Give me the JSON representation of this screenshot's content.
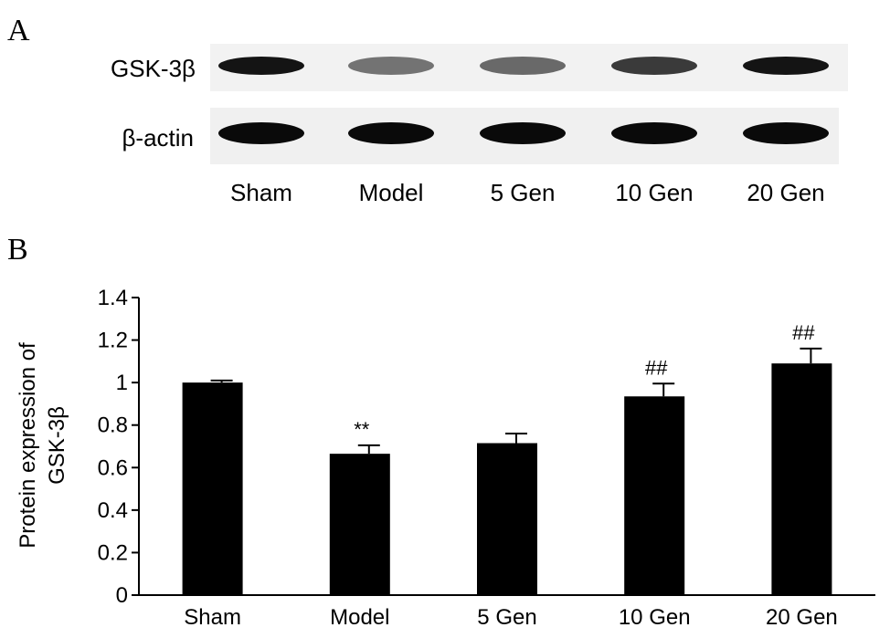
{
  "panels": {
    "a_letter": "A",
    "b_letter": "B"
  },
  "blot": {
    "rows": [
      {
        "label": "GSK-3β",
        "intensities": [
          0.95,
          0.45,
          0.5,
          0.75,
          0.95
        ]
      },
      {
        "label": "β-actin",
        "intensities": [
          1.0,
          1.0,
          1.0,
          1.0,
          1.0
        ]
      }
    ],
    "lanes": [
      "Sham",
      "Model",
      "5 Gen",
      "10 Gen",
      "20 Gen"
    ]
  },
  "chart_data": {
    "type": "bar",
    "categories": [
      "Sham",
      "Model",
      "5 Gen",
      "10 Gen",
      "20 Gen"
    ],
    "values": [
      1.0,
      0.665,
      0.715,
      0.935,
      1.09
    ],
    "errors": [
      0.01,
      0.04,
      0.045,
      0.06,
      0.07
    ],
    "annotations": [
      "",
      "**",
      "",
      "##",
      "##"
    ],
    "ylabel_line1": "Protein expression of",
    "ylabel_line2": "GSK-3β",
    "ylim": [
      0,
      1.4
    ],
    "yticks": [
      "0",
      "0.2",
      "0.4",
      "0.6",
      "0.8",
      "1",
      "1.2",
      "1.4"
    ],
    "bar_color": "#000000",
    "grid": false
  }
}
